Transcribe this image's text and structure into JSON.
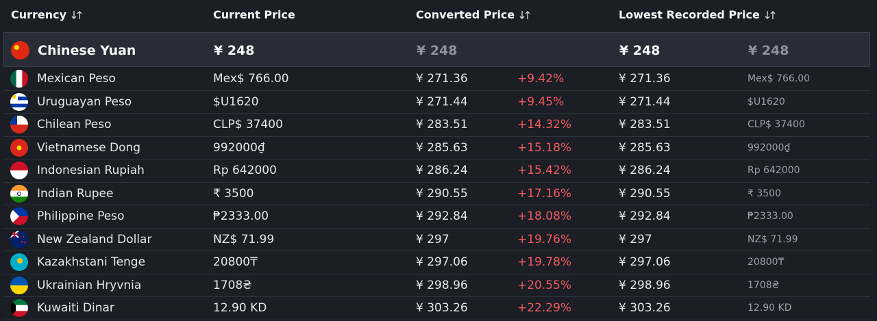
{
  "header": {
    "columns": [
      "Currency",
      "Current Price",
      "Converted Price",
      "Lowest Recorded Price"
    ]
  },
  "highlight": {
    "currency": "Chinese Yuan",
    "current": "¥ 248",
    "converted": "¥ 248",
    "lowest": "¥ 248",
    "lowest_original": "¥ 248"
  },
  "rows": [
    [
      "Mexican Peso",
      "Mex$ 766.00",
      "¥ 271.36",
      "+9.42%",
      "¥ 271.36",
      "Mex$ 766.00"
    ],
    [
      "Uruguayan Peso",
      "$U1620",
      "¥ 271.44",
      "+9.45%",
      "¥ 271.44",
      "$U1620"
    ],
    [
      "Chilean Peso",
      "CLP$ 37400",
      "¥ 283.51",
      "+14.32%",
      "¥ 283.51",
      "CLP$ 37400"
    ],
    [
      "Vietnamese Dong",
      "992000₫",
      "¥ 285.63",
      "+15.18%",
      "¥ 285.63",
      "992000₫"
    ],
    [
      "Indonesian Rupiah",
      "Rp 642000",
      "¥ 286.24",
      "+15.42%",
      "¥ 286.24",
      "Rp 642000"
    ],
    [
      "Indian Rupee",
      "₹ 3500",
      "¥ 290.55",
      "+17.16%",
      "¥ 290.55",
      "₹ 3500"
    ],
    [
      "Philippine Peso",
      "₱2333.00",
      "¥ 292.84",
      "+18.08%",
      "¥ 292.84",
      "₱2333.00"
    ],
    [
      "New Zealand Dollar",
      "NZ$ 71.99",
      "¥ 297",
      "+19.76%",
      "¥ 297",
      "NZ$ 71.99"
    ],
    [
      "Kazakhstani Tenge",
      "20800₸",
      "¥ 297.06",
      "+19.78%",
      "¥ 297.06",
      "20800₸"
    ],
    [
      "Ukrainian Hryvnia",
      "1708₴",
      "¥ 298.96",
      "+20.55%",
      "¥ 298.96",
      "1708₴"
    ],
    [
      "Kuwaiti Dinar",
      "12.90 KD",
      "¥ 303.26",
      "+22.29%",
      "¥ 303.26",
      "12.90 KD"
    ]
  ]
}
